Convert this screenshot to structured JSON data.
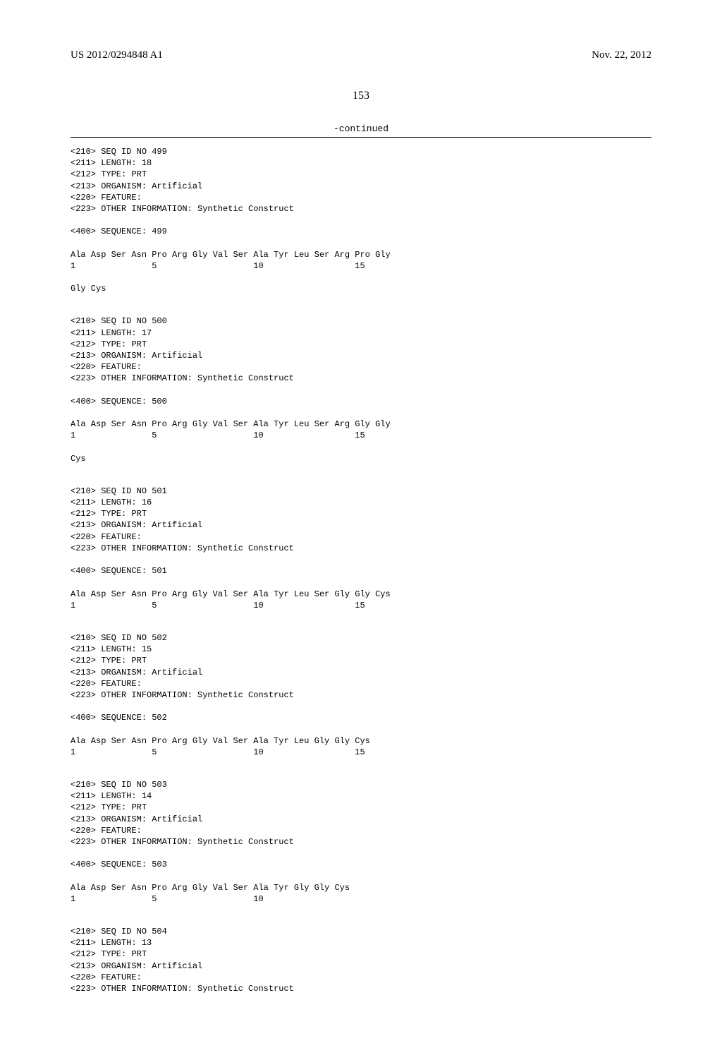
{
  "header": {
    "publication_number": "US 2012/0294848 A1",
    "date": "Nov. 22, 2012"
  },
  "page_number": "153",
  "continued_label": "-continued",
  "sequences": [
    {
      "headers": [
        "<210> SEQ ID NO 499",
        "<211> LENGTH: 18",
        "<212> TYPE: PRT",
        "<213> ORGANISM: Artificial",
        "<220> FEATURE:",
        "<223> OTHER INFORMATION: Synthetic Construct"
      ],
      "sequence_label": "<400> SEQUENCE: 499",
      "lines": [
        "Ala Asp Ser Asn Pro Arg Gly Val Ser Ala Tyr Leu Ser Arg Pro Gly",
        "1               5                   10                  15",
        "",
        "Gly Cys"
      ]
    },
    {
      "headers": [
        "<210> SEQ ID NO 500",
        "<211> LENGTH: 17",
        "<212> TYPE: PRT",
        "<213> ORGANISM: Artificial",
        "<220> FEATURE:",
        "<223> OTHER INFORMATION: Synthetic Construct"
      ],
      "sequence_label": "<400> SEQUENCE: 500",
      "lines": [
        "Ala Asp Ser Asn Pro Arg Gly Val Ser Ala Tyr Leu Ser Arg Gly Gly",
        "1               5                   10                  15",
        "",
        "Cys"
      ]
    },
    {
      "headers": [
        "<210> SEQ ID NO 501",
        "<211> LENGTH: 16",
        "<212> TYPE: PRT",
        "<213> ORGANISM: Artificial",
        "<220> FEATURE:",
        "<223> OTHER INFORMATION: Synthetic Construct"
      ],
      "sequence_label": "<400> SEQUENCE: 501",
      "lines": [
        "Ala Asp Ser Asn Pro Arg Gly Val Ser Ala Tyr Leu Ser Gly Gly Cys",
        "1               5                   10                  15"
      ]
    },
    {
      "headers": [
        "<210> SEQ ID NO 502",
        "<211> LENGTH: 15",
        "<212> TYPE: PRT",
        "<213> ORGANISM: Artificial",
        "<220> FEATURE:",
        "<223> OTHER INFORMATION: Synthetic Construct"
      ],
      "sequence_label": "<400> SEQUENCE: 502",
      "lines": [
        "Ala Asp Ser Asn Pro Arg Gly Val Ser Ala Tyr Leu Gly Gly Cys",
        "1               5                   10                  15"
      ]
    },
    {
      "headers": [
        "<210> SEQ ID NO 503",
        "<211> LENGTH: 14",
        "<212> TYPE: PRT",
        "<213> ORGANISM: Artificial",
        "<220> FEATURE:",
        "<223> OTHER INFORMATION: Synthetic Construct"
      ],
      "sequence_label": "<400> SEQUENCE: 503",
      "lines": [
        "Ala Asp Ser Asn Pro Arg Gly Val Ser Ala Tyr Gly Gly Cys",
        "1               5                   10"
      ]
    },
    {
      "headers": [
        "<210> SEQ ID NO 504",
        "<211> LENGTH: 13",
        "<212> TYPE: PRT",
        "<213> ORGANISM: Artificial",
        "<220> FEATURE:",
        "<223> OTHER INFORMATION: Synthetic Construct"
      ],
      "sequence_label": "",
      "lines": []
    }
  ]
}
